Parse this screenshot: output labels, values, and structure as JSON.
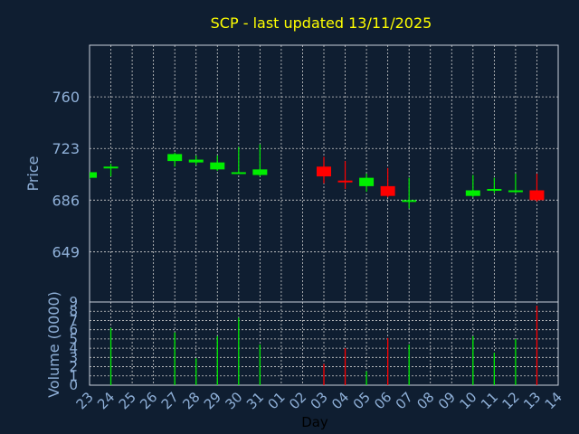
{
  "colors": {
    "background": "#0f1e31",
    "title": "#ffff00",
    "axis_text": "#8fb0d8",
    "frame": "#c8d0dc",
    "grid": "#d0d0d0",
    "up": "#00ee00",
    "down": "#ff0000"
  },
  "chart_data": [
    {
      "type": "candlestick",
      "title": "SCP - last updated 13/11/2025",
      "ylabel": "Price",
      "xlabel": "Day",
      "ylim": [
        613,
        797
      ],
      "yticks": [
        649,
        686,
        723,
        760
      ],
      "x_tick_labels": [
        "23",
        "24",
        "25",
        "26",
        "27",
        "28",
        "29",
        "30",
        "31",
        "01",
        "02",
        "03",
        "04",
        "05",
        "06",
        "07",
        "08",
        "09",
        "10",
        "11",
        "12",
        "13",
        "14"
      ],
      "grid": true,
      "candles": [
        {
          "day": "23",
          "open": 702,
          "close": 706,
          "high": 706,
          "low": 701
        },
        {
          "day": "24",
          "open": 709,
          "close": 710,
          "high": 712,
          "low": 703
        },
        {
          "day": "27",
          "open": 714,
          "close": 719,
          "high": 720,
          "low": 710
        },
        {
          "day": "28",
          "open": 713,
          "close": 715,
          "high": 718,
          "low": 711
        },
        {
          "day": "29",
          "open": 708,
          "close": 713,
          "high": 718,
          "low": 707
        },
        {
          "day": "30",
          "open": 705,
          "close": 706,
          "high": 724,
          "low": 705
        },
        {
          "day": "31",
          "open": 704,
          "close": 708,
          "high": 726,
          "low": 703
        },
        {
          "day": "03",
          "open": 710,
          "close": 703,
          "high": 717,
          "low": 698
        },
        {
          "day": "04",
          "open": 700,
          "close": 699,
          "high": 714,
          "low": 694
        },
        {
          "day": "05",
          "open": 696,
          "close": 702,
          "high": 705,
          "low": 692
        },
        {
          "day": "06",
          "open": 696,
          "close": 689,
          "high": 709,
          "low": 688
        },
        {
          "day": "07",
          "open": 685,
          "close": 686,
          "high": 702,
          "low": 680
        },
        {
          "day": "10",
          "open": 689,
          "close": 693,
          "high": 704,
          "low": 688
        },
        {
          "day": "11",
          "open": 693,
          "close": 694,
          "high": 702,
          "low": 691
        },
        {
          "day": "12",
          "open": 692,
          "close": 693,
          "high": 705,
          "low": 691
        },
        {
          "day": "13",
          "open": 693,
          "close": 686,
          "high": 705,
          "low": 685
        }
      ]
    },
    {
      "type": "bar",
      "ylabel": "Volume (0000)",
      "ylim": [
        0,
        9
      ],
      "yticks": [
        0,
        1,
        2,
        3,
        4,
        5,
        6,
        7,
        8,
        9
      ],
      "categories": [
        "23",
        "24",
        "27",
        "28",
        "29",
        "30",
        "31",
        "03",
        "04",
        "05",
        "06",
        "07",
        "10",
        "11",
        "12",
        "13"
      ],
      "values": [
        0,
        6.2,
        5.7,
        2.9,
        5.3,
        7.3,
        4.4,
        2.3,
        4.0,
        1.5,
        5.1,
        4.4,
        5.3,
        3.5,
        5.0,
        8.6
      ],
      "bar_direction": [
        "up",
        "up",
        "up",
        "up",
        "up",
        "up",
        "up",
        "down",
        "down",
        "up",
        "down",
        "up",
        "up",
        "up",
        "up",
        "down"
      ]
    }
  ]
}
